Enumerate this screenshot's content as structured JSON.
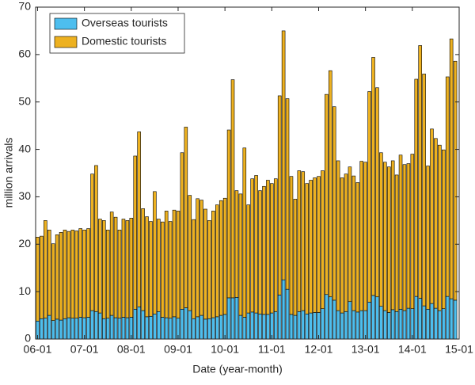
{
  "chart_data": {
    "type": "stacked-bar",
    "xlabel": "Date (year-month)",
    "ylabel": "million arrivals",
    "x": [
      0,
      1,
      2,
      3,
      4,
      5,
      6,
      7,
      8,
      9,
      10,
      11,
      12,
      13,
      14,
      15,
      16,
      17,
      18,
      19,
      20,
      21,
      22,
      23,
      24,
      25,
      26,
      27,
      28,
      29,
      30,
      31,
      32,
      33,
      34,
      35,
      36,
      37,
      38,
      39,
      40,
      41,
      42,
      43,
      44,
      45,
      46,
      47,
      48,
      49,
      50,
      51,
      52,
      53,
      54,
      55,
      56,
      57,
      58,
      59,
      60,
      61,
      62,
      63,
      64,
      65,
      66,
      67,
      68,
      69,
      70,
      71,
      72,
      73,
      74,
      75,
      76,
      77,
      78,
      79,
      80,
      81,
      82,
      83,
      84,
      85,
      86,
      87,
      88,
      89,
      90,
      91,
      92,
      93,
      94,
      95,
      96,
      97,
      98,
      99,
      100,
      101,
      102,
      103,
      104,
      105,
      106,
      107
    ],
    "xlim": [
      -0.5,
      108
    ],
    "xticks": [
      {
        "value": 0,
        "label": "06-01"
      },
      {
        "value": 12,
        "label": "07-01"
      },
      {
        "value": 24,
        "label": "08-01"
      },
      {
        "value": 36,
        "label": "09-01"
      },
      {
        "value": 48,
        "label": "10-01"
      },
      {
        "value": 60,
        "label": "11-01"
      },
      {
        "value": 72,
        "label": "12-01"
      },
      {
        "value": 84,
        "label": "13-01"
      },
      {
        "value": 96,
        "label": "14-01"
      },
      {
        "value": 108,
        "label": "15-01"
      }
    ],
    "ylim": [
      0,
      70
    ],
    "yticks": [
      0,
      10,
      20,
      30,
      40,
      50,
      60,
      70
    ],
    "legend": "upper-left",
    "series": [
      {
        "name": "Overseas tourists",
        "color": "#4dbeee",
        "values": [
          3.8,
          4.3,
          4.4,
          5.0,
          3.9,
          4.2,
          4.0,
          4.3,
          4.5,
          4.4,
          4.4,
          4.6,
          4.5,
          4.6,
          6.0,
          5.8,
          5.5,
          4.3,
          4.4,
          5.0,
          4.5,
          4.4,
          4.6,
          4.5,
          4.6,
          6.3,
          6.8,
          6.0,
          4.7,
          4.8,
          5.3,
          5.8,
          4.6,
          4.5,
          4.4,
          4.7,
          4.4,
          6.3,
          6.6,
          6.0,
          4.3,
          4.7,
          5.0,
          4.2,
          4.3,
          4.5,
          4.7,
          5.0,
          5.2,
          8.7,
          8.7,
          8.8,
          5.0,
          4.6,
          5.5,
          5.7,
          5.5,
          5.3,
          5.2,
          5.2,
          5.5,
          5.8,
          9.3,
          12.5,
          10.5,
          5.2,
          5.0,
          5.8,
          6.0,
          5.3,
          5.5,
          5.6,
          5.6,
          6.4,
          9.4,
          8.9,
          8.2,
          6.0,
          5.5,
          5.8,
          7.9,
          6.0,
          5.7,
          6.0,
          6.0,
          7.8,
          9.2,
          8.9,
          6.9,
          6.0,
          5.6,
          6.2,
          5.8,
          6.3,
          6.0,
          6.5,
          6.4,
          9.0,
          8.6,
          7.0,
          6.3,
          7.5,
          6.5,
          6.0,
          6.4,
          9.0,
          8.5,
          8.2
        ]
      },
      {
        "name": "Domestic tourists",
        "color": "#edb120",
        "values": [
          17.7,
          17.4,
          20.6,
          18.0,
          16.2,
          17.8,
          18.5,
          18.7,
          18.2,
          18.6,
          18.4,
          18.7,
          18.5,
          18.7,
          28.8,
          30.8,
          19.8,
          20.7,
          18.6,
          21.8,
          21.2,
          18.6,
          20.7,
          20.5,
          20.9,
          32.3,
          36.9,
          21.5,
          21.1,
          20.0,
          25.8,
          19.5,
          20.1,
          22.5,
          20.4,
          22.5,
          22.6,
          33.0,
          38.1,
          24.3,
          20.9,
          24.9,
          24.3,
          23.2,
          20.7,
          22.5,
          23.6,
          24.2,
          24.5,
          35.4,
          46.0,
          22.5,
          25.6,
          35.7,
          22.8,
          28.1,
          29.0,
          26.0,
          27.0,
          28.3,
          27.3,
          28.0,
          42.0,
          52.5,
          40.2,
          29.1,
          24.5,
          29.7,
          29.3,
          27.5,
          28.0,
          28.4,
          28.7,
          29.1,
          42.2,
          47.7,
          40.8,
          31.6,
          28.5,
          29.0,
          28.4,
          28.4,
          27.3,
          31.5,
          31.3,
          44.4,
          50.2,
          44.1,
          32.4,
          31.3,
          30.7,
          31.4,
          28.8,
          32.5,
          30.8,
          30.5,
          32.6,
          45.8,
          53.3,
          48.9,
          30.2,
          36.8,
          35.8,
          34.9,
          33.5,
          46.3,
          54.8,
          50.4
        ]
      }
    ]
  }
}
